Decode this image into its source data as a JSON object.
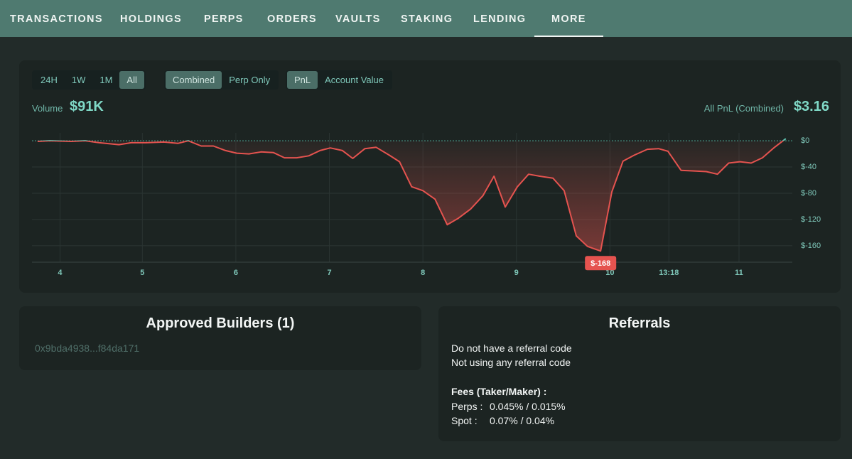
{
  "nav": {
    "tabs": [
      "TRANSACTIONS",
      "HOLDINGS",
      "PERPS",
      "ORDERS",
      "VAULTS",
      "STAKING",
      "LENDING",
      "MORE"
    ],
    "active": 7
  },
  "filters": {
    "range": [
      "24H",
      "1W",
      "1M",
      "All"
    ],
    "range_active": 3,
    "mode": [
      "Combined",
      "Perp Only"
    ],
    "mode_active": 0,
    "metric": [
      "PnL",
      "Account Value"
    ],
    "metric_active": 0
  },
  "stats": {
    "volume_label": "Volume",
    "volume": "$91K",
    "pnl_label": "All PnL (Combined)",
    "pnl": "$3.16"
  },
  "chart_data": {
    "type": "line",
    "x": [
      3.88,
      4.01,
      4.24,
      4.39,
      4.54,
      4.75,
      4.88,
      5.04,
      5.23,
      5.38,
      5.49,
      5.63,
      5.76,
      5.89,
      6.01,
      6.14,
      6.27,
      6.4,
      6.52,
      6.65,
      6.78,
      6.9,
      7.01,
      7.14,
      7.25,
      7.38,
      7.5,
      7.64,
      7.75,
      7.88,
      8.0,
      8.13,
      8.26,
      8.38,
      8.51,
      8.64,
      8.76,
      8.88,
      9.01,
      9.13,
      9.25,
      9.39,
      9.51,
      9.64,
      9.76,
      9.9,
      10.02,
      10.14,
      10.26,
      10.4,
      10.52,
      10.62,
      10.76,
      10.9,
      11.03,
      11.15,
      11.27,
      11.39,
      11.51,
      11.63,
      11.76,
      11.88
    ],
    "values": [
      -1,
      0,
      -1,
      0,
      -3,
      -6,
      -3,
      -3,
      -2,
      -4,
      0,
      -8,
      -8,
      -15,
      -19,
      -20,
      -17,
      -18,
      -26,
      -26,
      -23,
      -15,
      -11,
      -15,
      -27,
      -12,
      -10,
      -22,
      -32,
      -70,
      -76,
      -89,
      -128,
      -118,
      -104,
      -84,
      -54,
      -101,
      -70,
      -51,
      -54,
      -57,
      -76,
      -145,
      -161,
      -168,
      -78,
      -31,
      -22,
      -13,
      -12,
      -16,
      -45,
      -46,
      -47,
      -51,
      -34,
      -32,
      -34,
      -26,
      -10,
      3.16
    ],
    "min_label": "$-168",
    "positive_color": "#5fc2b0",
    "negative_color": "#e5534f",
    "xlim": [
      3.82,
      11.95
    ],
    "xticks": [
      {
        "value": 4.12,
        "label": "4"
      },
      {
        "value": 5.0,
        "label": "5"
      },
      {
        "value": 6.0,
        "label": "6"
      },
      {
        "value": 7.0,
        "label": "7"
      },
      {
        "value": 8.0,
        "label": "8"
      },
      {
        "value": 9.0,
        "label": "9"
      },
      {
        "value": 10.0,
        "label": "10"
      },
      {
        "value": 10.63,
        "label": "13:18"
      },
      {
        "value": 11.38,
        "label": "11"
      }
    ],
    "ylim": [
      -185,
      12
    ],
    "yticks": [
      {
        "value": 0,
        "label": "$0"
      },
      {
        "value": -40,
        "label": "$-40"
      },
      {
        "value": -80,
        "label": "$-80"
      },
      {
        "value": -120,
        "label": "$-120"
      },
      {
        "value": -160,
        "label": "$-160"
      }
    ],
    "grid": true
  },
  "builders": {
    "title": "Approved Builders (1)",
    "address": "0x9bda4938...f84da171"
  },
  "referrals": {
    "title": "Referrals",
    "lines": [
      "Do not have a referral code",
      "Not using any referral code"
    ],
    "fees_title": "Fees (Taker/Maker) :",
    "fees": [
      [
        "Perps :",
        "0.045% / 0.015%"
      ],
      [
        "Spot :",
        "0.07% / 0.04%"
      ]
    ]
  }
}
